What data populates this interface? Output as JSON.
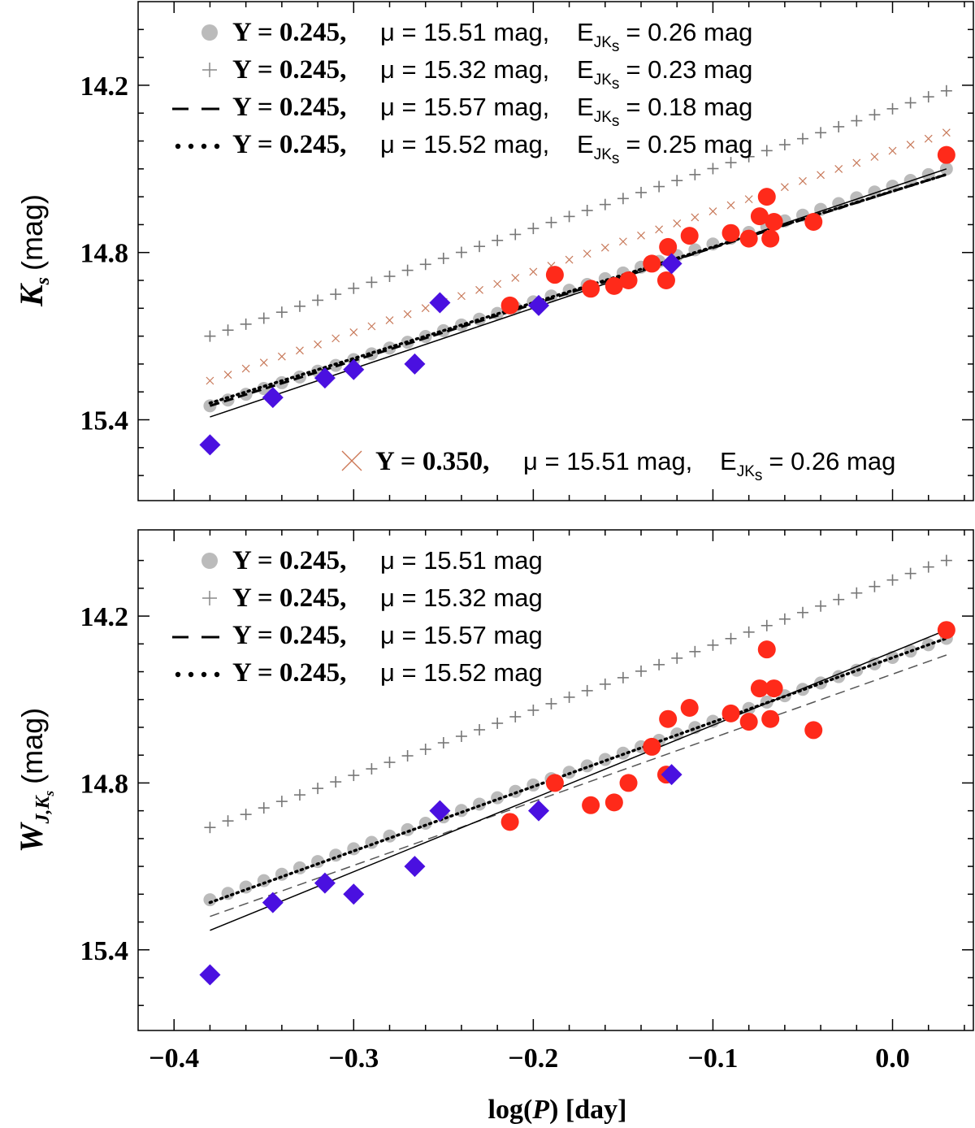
{
  "chart_data": [
    {
      "type": "scatter",
      "panel": "top",
      "ylabel": {
        "symbol": "K",
        "sub": "s",
        "unit": "(mag)"
      },
      "xlim": [
        -0.42,
        0.045
      ],
      "ylim": [
        15.69,
        13.9
      ],
      "x_ticks": [
        -0.4,
        -0.3,
        -0.2,
        -0.1,
        0.0
      ],
      "y_ticks": [
        14.2,
        14.8,
        15.4
      ],
      "y_tick_labels": [
        "14.2",
        "14.8",
        "15.4"
      ],
      "legend": [
        {
          "marker": "circle",
          "color": "#bbbbbb",
          "y_text": "Y = 0.245,",
          "mu_text": "μ = 15.51 mag,",
          "e_text": "E",
          "e_sub": "JK",
          "e_subsub": "s",
          "e_val": "= 0.26 mag"
        },
        {
          "marker": "plus",
          "color": "#888888",
          "y_text": "Y = 0.245,",
          "mu_text": "μ = 15.32 mag,",
          "e_text": "E",
          "e_sub": "JK",
          "e_subsub": "s",
          "e_val": "= 0.23 mag"
        },
        {
          "marker": "dash",
          "color": "#000000",
          "y_text": "Y = 0.245,",
          "mu_text": "μ = 15.57 mag,",
          "e_text": "E",
          "e_sub": "JK",
          "e_subsub": "s",
          "e_val": "= 0.18 mag"
        },
        {
          "marker": "dot",
          "color": "#000000",
          "y_text": "Y = 0.245,",
          "mu_text": "μ = 15.52 mag,",
          "e_text": "E",
          "e_sub": "JK",
          "e_subsub": "s",
          "e_val": "= 0.25 mag"
        }
      ],
      "legend2": {
        "marker": "cross",
        "color": "#cc7755",
        "y_text": "Y = 0.350,",
        "mu_text": "μ = 15.51 mag,",
        "e_text": "E",
        "e_sub": "JK",
        "e_subsub": "s",
        "e_val": "= 0.26 mag"
      },
      "model_lines": {
        "grey_circles": {
          "x0": -0.38,
          "y0": 15.35,
          "x1": 0.03,
          "y1": 14.5
        },
        "grey_plus": {
          "x0": -0.38,
          "y0": 15.1,
          "x1": 0.03,
          "y1": 14.22
        },
        "red_cross": {
          "x0": -0.38,
          "y0": 15.26,
          "x1": 0.03,
          "y1": 14.37
        },
        "dashed_black": {
          "x0": -0.38,
          "y0": 15.35,
          "x1": 0.03,
          "y1": 14.52
        },
        "dotted_black": {
          "x0": -0.38,
          "y0": 15.34,
          "x1": 0.03,
          "y1": 14.52
        },
        "solid_fit": {
          "x0": -0.38,
          "y0": 15.39,
          "x1": 0.03,
          "y1": 14.5
        }
      },
      "red_points": {
        "x": [
          -0.213,
          -0.188,
          -0.168,
          -0.155,
          -0.147,
          -0.134,
          -0.126,
          -0.125,
          -0.113,
          -0.09,
          -0.08,
          -0.074,
          -0.07,
          -0.068,
          -0.066,
          -0.044,
          0.03
        ],
        "y": [
          14.99,
          14.88,
          14.93,
          14.92,
          14.9,
          14.84,
          14.9,
          14.78,
          14.74,
          14.73,
          14.75,
          14.67,
          14.6,
          14.75,
          14.69,
          14.69,
          14.45
        ]
      },
      "blue_points": {
        "x": [
          -0.38,
          -0.345,
          -0.316,
          -0.3,
          -0.266,
          -0.252,
          -0.197,
          -0.123
        ],
        "y": [
          15.49,
          15.32,
          15.25,
          15.22,
          15.2,
          14.98,
          14.99,
          14.84
        ]
      }
    },
    {
      "type": "scatter",
      "panel": "bottom",
      "xlabel": {
        "pre": "log(",
        "symbol": "P",
        "post": ") [day]"
      },
      "ylabel": {
        "symbol": "W",
        "sub": "J,K",
        "subsub": "s",
        "unit": "(mag)"
      },
      "xlim": [
        -0.42,
        0.045
      ],
      "ylim": [
        15.69,
        13.89
      ],
      "x_ticks": [
        -0.4,
        -0.3,
        -0.2,
        -0.1,
        0.0
      ],
      "x_tick_labels": [
        "−0.4",
        "−0.3",
        "−0.2",
        "−0.1",
        "0.0"
      ],
      "y_ticks": [
        14.2,
        14.8,
        15.4
      ],
      "y_tick_labels": [
        "14.2",
        "14.8",
        "15.4"
      ],
      "legend": [
        {
          "marker": "circle",
          "color": "#bbbbbb",
          "y_text": "Y = 0.245,",
          "mu_text": "μ = 15.51 mag"
        },
        {
          "marker": "plus",
          "color": "#888888",
          "y_text": "Y = 0.245,",
          "mu_text": "μ = 15.32 mag"
        },
        {
          "marker": "dash",
          "color": "#000000",
          "y_text": "Y = 0.245,",
          "mu_text": "μ = 15.57 mag"
        },
        {
          "marker": "dot",
          "color": "#000000",
          "y_text": "Y = 0.245,",
          "mu_text": "μ = 15.52 mag"
        }
      ],
      "model_lines": {
        "grey_circles": {
          "x0": -0.38,
          "y0": 15.22,
          "x1": 0.03,
          "y1": 14.28
        },
        "grey_plus": {
          "x0": -0.38,
          "y0": 14.96,
          "x1": 0.03,
          "y1": 14.0
        },
        "dashed_grey": {
          "x0": -0.38,
          "y0": 15.28,
          "x1": 0.03,
          "y1": 14.34
        },
        "dotted_black": {
          "x0": -0.38,
          "y0": 15.23,
          "x1": 0.03,
          "y1": 14.28
        },
        "solid_fit": {
          "x0": -0.38,
          "y0": 15.33,
          "x1": 0.03,
          "y1": 14.25
        }
      },
      "red_points": {
        "x": [
          -0.213,
          -0.188,
          -0.168,
          -0.155,
          -0.147,
          -0.134,
          -0.126,
          -0.125,
          -0.113,
          -0.09,
          -0.08,
          -0.074,
          -0.07,
          -0.068,
          -0.066,
          -0.044,
          0.03
        ],
        "y": [
          14.94,
          14.8,
          14.88,
          14.87,
          14.8,
          14.67,
          14.77,
          14.57,
          14.53,
          14.55,
          14.58,
          14.46,
          14.32,
          14.57,
          14.46,
          14.61,
          14.25
        ]
      },
      "blue_points": {
        "x": [
          -0.38,
          -0.345,
          -0.316,
          -0.3,
          -0.266,
          -0.252,
          -0.197,
          -0.123
        ],
        "y": [
          15.49,
          15.23,
          15.16,
          15.2,
          15.1,
          14.9,
          14.9,
          14.77
        ]
      }
    }
  ]
}
